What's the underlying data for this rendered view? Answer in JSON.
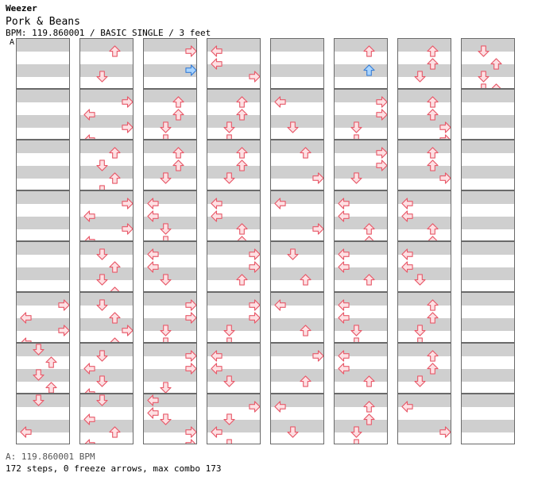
{
  "header": {
    "artist": "Weezer",
    "song": "Pork & Beans",
    "info": "BPM: 119.860001 / BASIC SINGLE / 3 feet",
    "bpm_marker": "A"
  },
  "footer": {
    "bpm_line": "A: 119.860001 BPM",
    "stats": "172 steps, 0 freeze arrows, max combo 173"
  },
  "colors": {
    "arrow_red": "#e85a6a",
    "arrow_red_fill": "#fde0e3",
    "arrow_blue": "#3a7fd6",
    "arrow_blue_fill": "#a8d4ff"
  },
  "chart": {
    "columns": [
      [
        {
          "arrows": []
        },
        {
          "arrows": []
        },
        {
          "arrows": []
        },
        {
          "arrows": []
        },
        {
          "arrows": []
        },
        {
          "arrows": [
            [
              "right",
              0.5
            ],
            [
              "left",
              1.5
            ],
            [
              "right",
              2.5
            ],
            [
              "left",
              3.5
            ]
          ]
        },
        {
          "arrows": [
            [
              "down",
              0
            ],
            [
              "up",
              1
            ],
            [
              "down",
              2
            ],
            [
              "up",
              3
            ]
          ]
        },
        {
          "arrows": [
            [
              "down",
              0
            ],
            [
              "left",
              2.5
            ]
          ]
        }
      ],
      [
        {
          "arrows": [
            [
              "up",
              0.5
            ],
            [
              "down",
              2.5
            ]
          ]
        },
        {
          "arrows": [
            [
              "right",
              0.5
            ],
            [
              "left",
              1.5
            ],
            [
              "right",
              2.5
            ],
            [
              "left",
              3.5
            ]
          ]
        },
        {
          "arrows": [
            [
              "up",
              0.5
            ],
            [
              "down",
              1.5
            ],
            [
              "up",
              2.5
            ],
            [
              "down",
              3.5
            ]
          ]
        },
        {
          "arrows": [
            [
              "right",
              0.5
            ],
            [
              "left",
              1.5
            ],
            [
              "right",
              2.5
            ],
            [
              "left",
              3.5
            ]
          ]
        },
        {
          "arrows": [
            [
              "down",
              0.5
            ],
            [
              "up",
              1.5
            ],
            [
              "down",
              2.5
            ],
            [
              "up",
              3.5
            ]
          ]
        },
        {
          "arrows": [
            [
              "down",
              0.5
            ],
            [
              "up",
              1.5
            ],
            [
              "right",
              2.5
            ],
            [
              "up",
              3.5
            ]
          ]
        },
        {
          "arrows": [
            [
              "down",
              0.5
            ],
            [
              "left",
              1.5
            ],
            [
              "down",
              2.5
            ],
            [
              "left",
              3.5
            ]
          ]
        },
        {
          "arrows": [
            [
              "down",
              0
            ],
            [
              "left",
              1.5
            ],
            [
              "up",
              2.5
            ],
            [
              "left",
              3.5
            ]
          ]
        }
      ],
      [
        {
          "arrows": [
            [
              "right",
              0.5
            ],
            [
              "right-blue",
              2
            ]
          ]
        },
        {
          "arrows": [
            [
              "up",
              0.5
            ],
            [
              "up",
              1.5
            ],
            [
              "down",
              2.5
            ],
            [
              "down",
              3.5
            ]
          ]
        },
        {
          "arrows": [
            [
              "up",
              0.5
            ],
            [
              "up",
              1.5
            ],
            [
              "down",
              2.5
            ]
          ]
        },
        {
          "arrows": [
            [
              "left",
              0.5
            ],
            [
              "left",
              1.5
            ],
            [
              "down",
              2.5
            ],
            [
              "down",
              3.5
            ]
          ]
        },
        {
          "arrows": [
            [
              "left",
              0.5
            ],
            [
              "left",
              1.5
            ],
            [
              "down",
              2.5
            ]
          ]
        },
        {
          "arrows": [
            [
              "right",
              0.5
            ],
            [
              "right",
              1.5
            ],
            [
              "down",
              2.5
            ],
            [
              "down",
              3.5
            ]
          ]
        },
        {
          "arrows": [
            [
              "right",
              0.5
            ],
            [
              "right",
              1.5
            ],
            [
              "down",
              3
            ]
          ]
        },
        {
          "arrows": [
            [
              "left",
              0
            ],
            [
              "left",
              1
            ],
            [
              "down",
              1.5
            ],
            [
              "right",
              2.5
            ],
            [
              "right",
              3.5
            ]
          ]
        }
      ],
      [
        {
          "arrows": [
            [
              "left",
              0.5
            ],
            [
              "left",
              1.5
            ],
            [
              "right",
              2.5
            ]
          ]
        },
        {
          "arrows": [
            [
              "up",
              0.5
            ],
            [
              "up",
              1.5
            ],
            [
              "down",
              2.5
            ],
            [
              "down",
              3.5
            ]
          ]
        },
        {
          "arrows": [
            [
              "up",
              0.5
            ],
            [
              "up",
              1.5
            ],
            [
              "down",
              2.5
            ]
          ]
        },
        {
          "arrows": [
            [
              "left",
              0.5
            ],
            [
              "left",
              1.5
            ],
            [
              "up",
              2.5
            ],
            [
              "up",
              3.5
            ]
          ]
        },
        {
          "arrows": [
            [
              "right",
              0.5
            ],
            [
              "right",
              1.5
            ],
            [
              "up",
              2.5
            ]
          ]
        },
        {
          "arrows": [
            [
              "right",
              0.5
            ],
            [
              "right",
              1.5
            ],
            [
              "down",
              2.5
            ],
            [
              "down",
              3.5
            ]
          ]
        },
        {
          "arrows": [
            [
              "left",
              0.5
            ],
            [
              "left",
              1.5
            ],
            [
              "down",
              2.5
            ]
          ]
        },
        {
          "arrows": [
            [
              "right",
              0.5
            ],
            [
              "down",
              1.5
            ],
            [
              "left",
              2.5
            ],
            [
              "down",
              3.5
            ]
          ]
        }
      ],
      [
        {
          "arrows": []
        },
        {
          "arrows": [
            [
              "left",
              0.5
            ],
            [
              "down",
              2.5
            ]
          ]
        },
        {
          "arrows": [
            [
              "up",
              0.5
            ],
            [
              "right",
              2.5
            ]
          ]
        },
        {
          "arrows": [
            [
              "left",
              0.5
            ],
            [
              "right",
              2.5
            ]
          ]
        },
        {
          "arrows": [
            [
              "down",
              0.5
            ],
            [
              "up",
              2.5
            ]
          ]
        },
        {
          "arrows": [
            [
              "left",
              0.5
            ],
            [
              "up",
              2.5
            ]
          ]
        },
        {
          "arrows": [
            [
              "right",
              0.5
            ],
            [
              "up",
              2.5
            ]
          ]
        },
        {
          "arrows": [
            [
              "left",
              0.5
            ],
            [
              "down",
              2.5
            ]
          ]
        }
      ],
      [
        {
          "arrows": [
            [
              "up",
              0.5
            ],
            [
              "up-blue",
              2
            ]
          ]
        },
        {
          "arrows": [
            [
              "right",
              0.5
            ],
            [
              "right",
              1.5
            ],
            [
              "down",
              2.5
            ],
            [
              "down",
              3.5
            ]
          ]
        },
        {
          "arrows": [
            [
              "right",
              0.5
            ],
            [
              "right",
              1.5
            ],
            [
              "down",
              2.5
            ]
          ]
        },
        {
          "arrows": [
            [
              "left",
              0.5
            ],
            [
              "left",
              1.5
            ],
            [
              "up",
              2.5
            ],
            [
              "up",
              3.5
            ]
          ]
        },
        {
          "arrows": [
            [
              "left",
              0.5
            ],
            [
              "left",
              1.5
            ],
            [
              "up",
              2.5
            ]
          ]
        },
        {
          "arrows": [
            [
              "left",
              0.5
            ],
            [
              "left",
              1.5
            ],
            [
              "down",
              2.5
            ],
            [
              "down",
              3.5
            ]
          ]
        },
        {
          "arrows": [
            [
              "left",
              0.5
            ],
            [
              "left",
              1.5
            ],
            [
              "up",
              2.5
            ]
          ]
        },
        {
          "arrows": [
            [
              "up",
              0.5
            ],
            [
              "up",
              1.5
            ],
            [
              "down",
              2.5
            ],
            [
              "down",
              3.5
            ]
          ]
        }
      ],
      [
        {
          "arrows": [
            [
              "up",
              0.5
            ],
            [
              "up",
              1.5
            ],
            [
              "down",
              2.5
            ]
          ]
        },
        {
          "arrows": [
            [
              "up",
              0.5
            ],
            [
              "up",
              1.5
            ],
            [
              "right",
              2.5
            ],
            [
              "right",
              3.5
            ]
          ]
        },
        {
          "arrows": [
            [
              "up",
              0.5
            ],
            [
              "up",
              1.5
            ],
            [
              "right",
              2.5
            ]
          ]
        },
        {
          "arrows": [
            [
              "left",
              0.5
            ],
            [
              "left",
              1.5
            ],
            [
              "up",
              2.5
            ],
            [
              "up",
              3.5
            ]
          ]
        },
        {
          "arrows": [
            [
              "left",
              0.5
            ],
            [
              "left",
              1.5
            ],
            [
              "down",
              2.5
            ]
          ]
        },
        {
          "arrows": [
            [
              "up",
              0.5
            ],
            [
              "up",
              1.5
            ],
            [
              "down",
              2.5
            ],
            [
              "down",
              3.5
            ]
          ]
        },
        {
          "arrows": [
            [
              "up",
              0.5
            ],
            [
              "up",
              1.5
            ],
            [
              "down",
              2.5
            ]
          ]
        },
        {
          "arrows": [
            [
              "left",
              0.5
            ],
            [
              "right",
              2.5
            ]
          ]
        }
      ],
      [
        {
          "arrows": [
            [
              "down",
              0.5
            ],
            [
              "up",
              1.5
            ],
            [
              "down",
              2.5
            ],
            [
              "up",
              3.5
            ],
            [
              "down",
              3.5
            ]
          ]
        },
        {
          "arrows": []
        },
        {
          "arrows": []
        },
        {
          "arrows": []
        },
        {
          "arrows": []
        },
        {
          "arrows": []
        },
        {
          "arrows": []
        },
        {
          "arrows": []
        }
      ]
    ]
  }
}
